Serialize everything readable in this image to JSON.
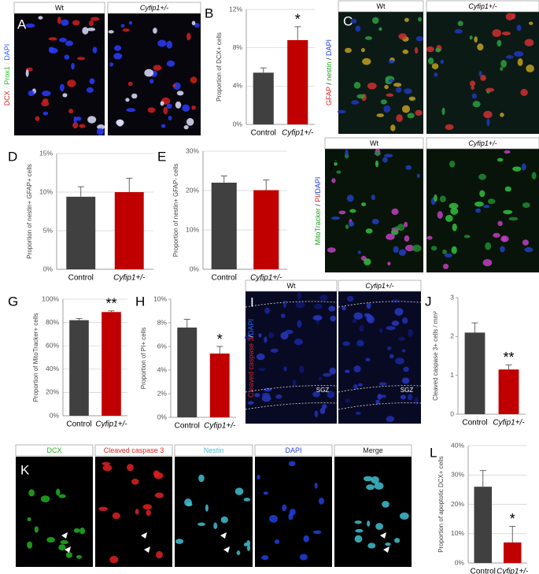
{
  "chart_data": [
    {
      "type": "bar",
      "panel": "B",
      "ylabel": "Proportion of DCX+ cells",
      "categories": [
        "Control",
        "Cyfip1+/-"
      ],
      "values": [
        5.4,
        8.8
      ],
      "errors": [
        0.5,
        1.4
      ],
      "colors": [
        "#404040",
        "#c00000"
      ],
      "ylim": [
        0,
        12
      ],
      "yticks": [
        {
          "value": 0,
          "label": "0%"
        },
        {
          "value": 4,
          "label": "4%"
        },
        {
          "value": 8,
          "label": "8%"
        },
        {
          "value": 12,
          "label": "12%"
        }
      ],
      "grid": true,
      "annotation": "*"
    },
    {
      "type": "bar",
      "panel": "D",
      "ylabel": "Proportion of nestin+ GFAP+ cells",
      "categories": [
        "Control",
        "Cyfip1+/-"
      ],
      "values": [
        9.4,
        10.0
      ],
      "errors": [
        1.3,
        1.8
      ],
      "colors": [
        "#404040",
        "#c00000"
      ],
      "ylim": [
        0,
        15
      ],
      "yticks": [
        {
          "value": 0,
          "label": "0%"
        },
        {
          "value": 5,
          "label": "5%"
        },
        {
          "value": 10,
          "label": "10%"
        },
        {
          "value": 15,
          "label": "15%"
        }
      ],
      "grid": true
    },
    {
      "type": "bar",
      "panel": "E",
      "ylabel": "Proportion of nestin+ GFAP- cells",
      "categories": [
        "Control",
        "Cyfip1+/-"
      ],
      "values": [
        22.0,
        20.1
      ],
      "errors": [
        1.7,
        2.6
      ],
      "colors": [
        "#404040",
        "#c00000"
      ],
      "ylim": [
        0,
        30
      ],
      "yticks": [
        {
          "value": 0,
          "label": "0%"
        },
        {
          "value": 10,
          "label": "10%"
        },
        {
          "value": 20,
          "label": "20%"
        },
        {
          "value": 30,
          "label": "30%"
        }
      ],
      "grid": true
    },
    {
      "type": "bar",
      "panel": "G",
      "ylabel": "Proportion of MitoTracker+ cells",
      "categories": [
        "Control",
        "Cyfip1+/-"
      ],
      "values": [
        82,
        89
      ],
      "errors": [
        1.5,
        1.0
      ],
      "colors": [
        "#404040",
        "#c00000"
      ],
      "ylim": [
        0,
        100
      ],
      "yticks": [
        {
          "value": 0,
          "label": "0%"
        },
        {
          "value": 20,
          "label": "20%"
        },
        {
          "value": 40,
          "label": "40%"
        },
        {
          "value": 60,
          "label": "60%"
        },
        {
          "value": 80,
          "label": "80%"
        },
        {
          "value": 100,
          "label": "100%"
        }
      ],
      "grid": true,
      "annotation": "**"
    },
    {
      "type": "bar",
      "panel": "H",
      "ylabel": "Proportion of PI+ cells",
      "categories": [
        "Control",
        "Cyfip1+/-"
      ],
      "values": [
        7.6,
        5.4
      ],
      "errors": [
        0.7,
        0.6
      ],
      "colors": [
        "#404040",
        "#c00000"
      ],
      "ylim": [
        0,
        10
      ],
      "yticks": [
        {
          "value": 0,
          "label": "0%"
        },
        {
          "value": 2,
          "label": "2%"
        },
        {
          "value": 4,
          "label": "4%"
        },
        {
          "value": 6,
          "label": "6%"
        },
        {
          "value": 8,
          "label": "8%"
        },
        {
          "value": 10,
          "label": "10%"
        }
      ],
      "grid": false,
      "annotation": "*"
    },
    {
      "type": "bar",
      "panel": "J",
      "ylabel": "Cleaved caspase 3+ cells / mm²",
      "categories": [
        "Control",
        "Cyfip1+/-"
      ],
      "values": [
        2.1,
        1.15
      ],
      "errors": [
        0.25,
        0.12
      ],
      "colors": [
        "#404040",
        "#c00000"
      ],
      "ylim": [
        0,
        3
      ],
      "yticks": [
        0,
        1,
        2,
        3
      ],
      "grid": false,
      "annotation": "**"
    },
    {
      "type": "bar",
      "panel": "L",
      "ylabel": "Proportion of apoptotic DCX+ cells",
      "categories": [
        "Control",
        "Cyfip1+/-"
      ],
      "values": [
        26,
        7
      ],
      "errors": [
        5.5,
        5.5
      ],
      "colors": [
        "#404040",
        "#c00000"
      ],
      "ylim": [
        0,
        40
      ],
      "yticks": [
        {
          "value": 0,
          "label": "0%"
        },
        {
          "value": 10,
          "label": "10%"
        },
        {
          "value": 20,
          "label": "20%"
        },
        {
          "value": 30,
          "label": "30%"
        },
        {
          "value": 40,
          "label": "40%"
        }
      ],
      "grid": true,
      "annotation": "*"
    }
  ],
  "image_panels": [
    {
      "panel": "A",
      "headers": [
        "Wt",
        "Cyfip1+/-"
      ],
      "stain": [
        {
          "text": "DCX",
          "color": "#e02020"
        },
        {
          "text": " / ",
          "color": "#dddddd"
        },
        {
          "text": "Prox1",
          "color": "#20c020"
        },
        {
          "text": " / ",
          "color": "#dddddd"
        },
        {
          "text": "DAPI",
          "color": "#3060ff"
        }
      ]
    },
    {
      "panel": "C",
      "headers": [
        "Wt",
        "Cyfip1+/-"
      ],
      "stain": [
        {
          "text": "GFAP",
          "color": "#e02020"
        },
        {
          "text": " / ",
          "color": "#333333"
        },
        {
          "text": "nestin",
          "color": "#20a020"
        },
        {
          "text": " / ",
          "color": "#333333"
        },
        {
          "text": "DAPI",
          "color": "#2040e0"
        }
      ]
    },
    {
      "panel": "F",
      "headers": [
        "Wt",
        "Cyfip1+/-"
      ],
      "stain": [
        {
          "text": "MitoTracker",
          "color": "#20a020"
        },
        {
          "text": " / ",
          "color": "#333333"
        },
        {
          "text": "PI",
          "color": "#e02020"
        },
        {
          "text": "/",
          "color": "#333333"
        },
        {
          "text": "DAPI",
          "color": "#2040e0"
        }
      ]
    },
    {
      "panel": "I",
      "headers": [
        "Wt",
        "Cyfip1+/-"
      ],
      "stain": [
        {
          "text": "Cleaved caspase 3",
          "color": "#e02020"
        },
        {
          "text": "/",
          "color": "#dddddd"
        },
        {
          "text": "DAPI",
          "color": "#3060ff"
        }
      ],
      "region_labels": [
        "SGZ",
        "SGZ"
      ]
    },
    {
      "panel": "K",
      "headers": [
        "DCX",
        "Cleaved caspase 3",
        "Nestin",
        "DAPI",
        "Merge"
      ],
      "header_colors": [
        "#20b020",
        "#e02020",
        "#40c0d0",
        "#2040e0",
        "#222222"
      ]
    }
  ]
}
